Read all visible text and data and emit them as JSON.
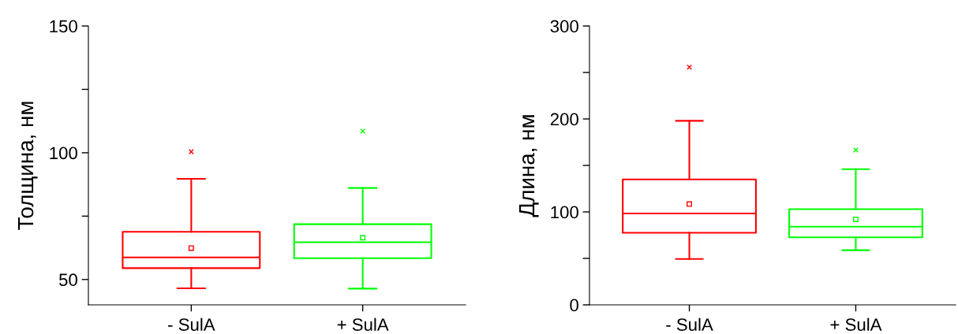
{
  "chart_data": [
    {
      "type": "box",
      "ylabel": "Толщина, нм",
      "categories": [
        "- SulA",
        "+ SulA"
      ],
      "colors": [
        "#ff0000",
        "#00ff00"
      ],
      "boxes": [
        {
          "low": 46.5,
          "q1": 54.5,
          "median": 58.7,
          "q3": 68.8,
          "high": 89.7,
          "mean": 62.4,
          "outliers": [
            100.4
          ]
        },
        {
          "low": 46.4,
          "q1": 58.4,
          "median": 64.7,
          "q3": 71.8,
          "high": 86.1,
          "mean": 66.5,
          "outliers": [
            108.5
          ]
        }
      ],
      "ylim": [
        40,
        150
      ],
      "yticks": [
        50,
        {
          "value": 75,
          "label": null
        },
        100,
        {
          "value": 125,
          "label": null
        },
        150
      ],
      "grid": false,
      "legend": false
    },
    {
      "type": "box",
      "ylabel": "Длина, нм",
      "categories": [
        "- SulA",
        "+ SulA"
      ],
      "colors": [
        "#ff0000",
        "#00ff00"
      ],
      "boxes": [
        {
          "low": 49.3,
          "q1": 77.6,
          "median": 98.3,
          "q3": 135,
          "high": 198,
          "mean": 108.4,
          "outliers": [
            255.7
          ]
        },
        {
          "low": 58.8,
          "q1": 72.6,
          "median": 84.1,
          "q3": 103,
          "high": 146,
          "mean": 92,
          "outliers": [
            166.6
          ]
        }
      ],
      "ylim": [
        0,
        300
      ],
      "yticks": [
        0,
        {
          "value": 50,
          "label": null
        },
        100,
        {
          "value": 150,
          "label": null
        },
        200,
        {
          "value": 250,
          "label": null
        },
        300
      ],
      "grid": false,
      "legend": false
    }
  ]
}
